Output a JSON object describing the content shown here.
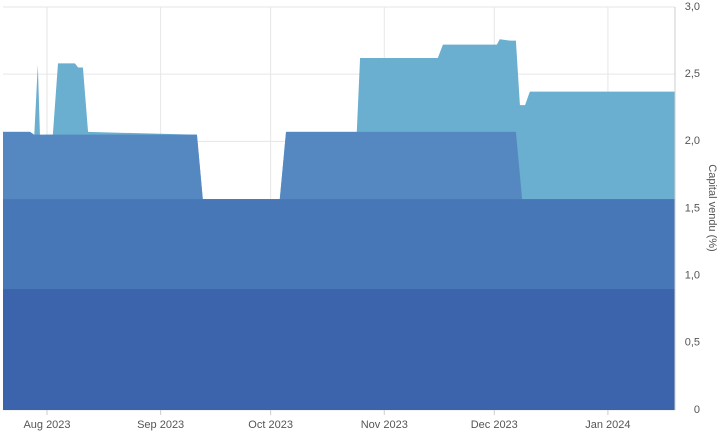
{
  "chart_data": {
    "type": "area",
    "y_label": "Capital vendu (%)",
    "xlim": [
      -12,
      171.3
    ],
    "xticks": [
      {
        "value": 0,
        "label": "Aug 2023"
      },
      {
        "value": 31,
        "label": "Sep 2023"
      },
      {
        "value": 61,
        "label": "Oct 2023"
      },
      {
        "value": 92,
        "label": "Nov 2023"
      },
      {
        "value": 122,
        "label": "Dec 2023"
      },
      {
        "value": 153,
        "label": "Jan 2024"
      }
    ],
    "ylim": [
      0,
      3
    ],
    "yticks": [
      0,
      {
        "value": 0.5,
        "label": "0,5"
      },
      {
        "value": 1,
        "label": "1,0"
      },
      {
        "value": 1.5,
        "label": "1,5"
      },
      {
        "value": 2,
        "label": "2,0"
      },
      {
        "value": 2.5,
        "label": "2,5"
      },
      {
        "value": 3,
        "label": "3,0"
      }
    ],
    "grid": true,
    "series": [
      {
        "color": "#6aaed0",
        "x": [
          -12,
          -4.6,
          -3.5,
          -2.5,
          -1.4,
          -0.5,
          1.6,
          3,
          7.6,
          8.5,
          9.8,
          11.2,
          39.8,
          40.9,
          42.5,
          63.5,
          65.2,
          84.5,
          85.4,
          106.6,
          108,
          122.7,
          123.5,
          126.3,
          127.9,
          129,
          130.4,
          131.7,
          171.3
        ],
        "values": [
          2.07,
          2.07,
          2.03,
          2.57,
          1.57,
          2.05,
          2.05,
          2.58,
          2.58,
          2.55,
          2.55,
          2.07,
          2.05,
          2.05,
          1.57,
          1.57,
          2.07,
          2.07,
          2.62,
          2.62,
          2.72,
          2.72,
          2.76,
          2.75,
          2.75,
          2.27,
          2.27,
          2.37,
          2.37
        ]
      },
      {
        "color": "#5588c0",
        "x": [
          -12,
          -4.6,
          -3.5,
          39.8,
          40.9,
          42.5,
          63.5,
          65.2,
          127.9,
          129.6,
          171.3
        ],
        "values": [
          2.07,
          2.07,
          2.05,
          2.05,
          2.05,
          1.57,
          1.57,
          2.07,
          2.07,
          1.57,
          1.57
        ]
      },
      {
        "color": "#4877b7",
        "x": [
          -12,
          171.3
        ],
        "values": [
          1.57,
          1.57
        ]
      },
      {
        "color": "#3b64ad",
        "x": [
          -12,
          171.3
        ],
        "values": [
          0.9,
          0.9
        ]
      }
    ]
  }
}
